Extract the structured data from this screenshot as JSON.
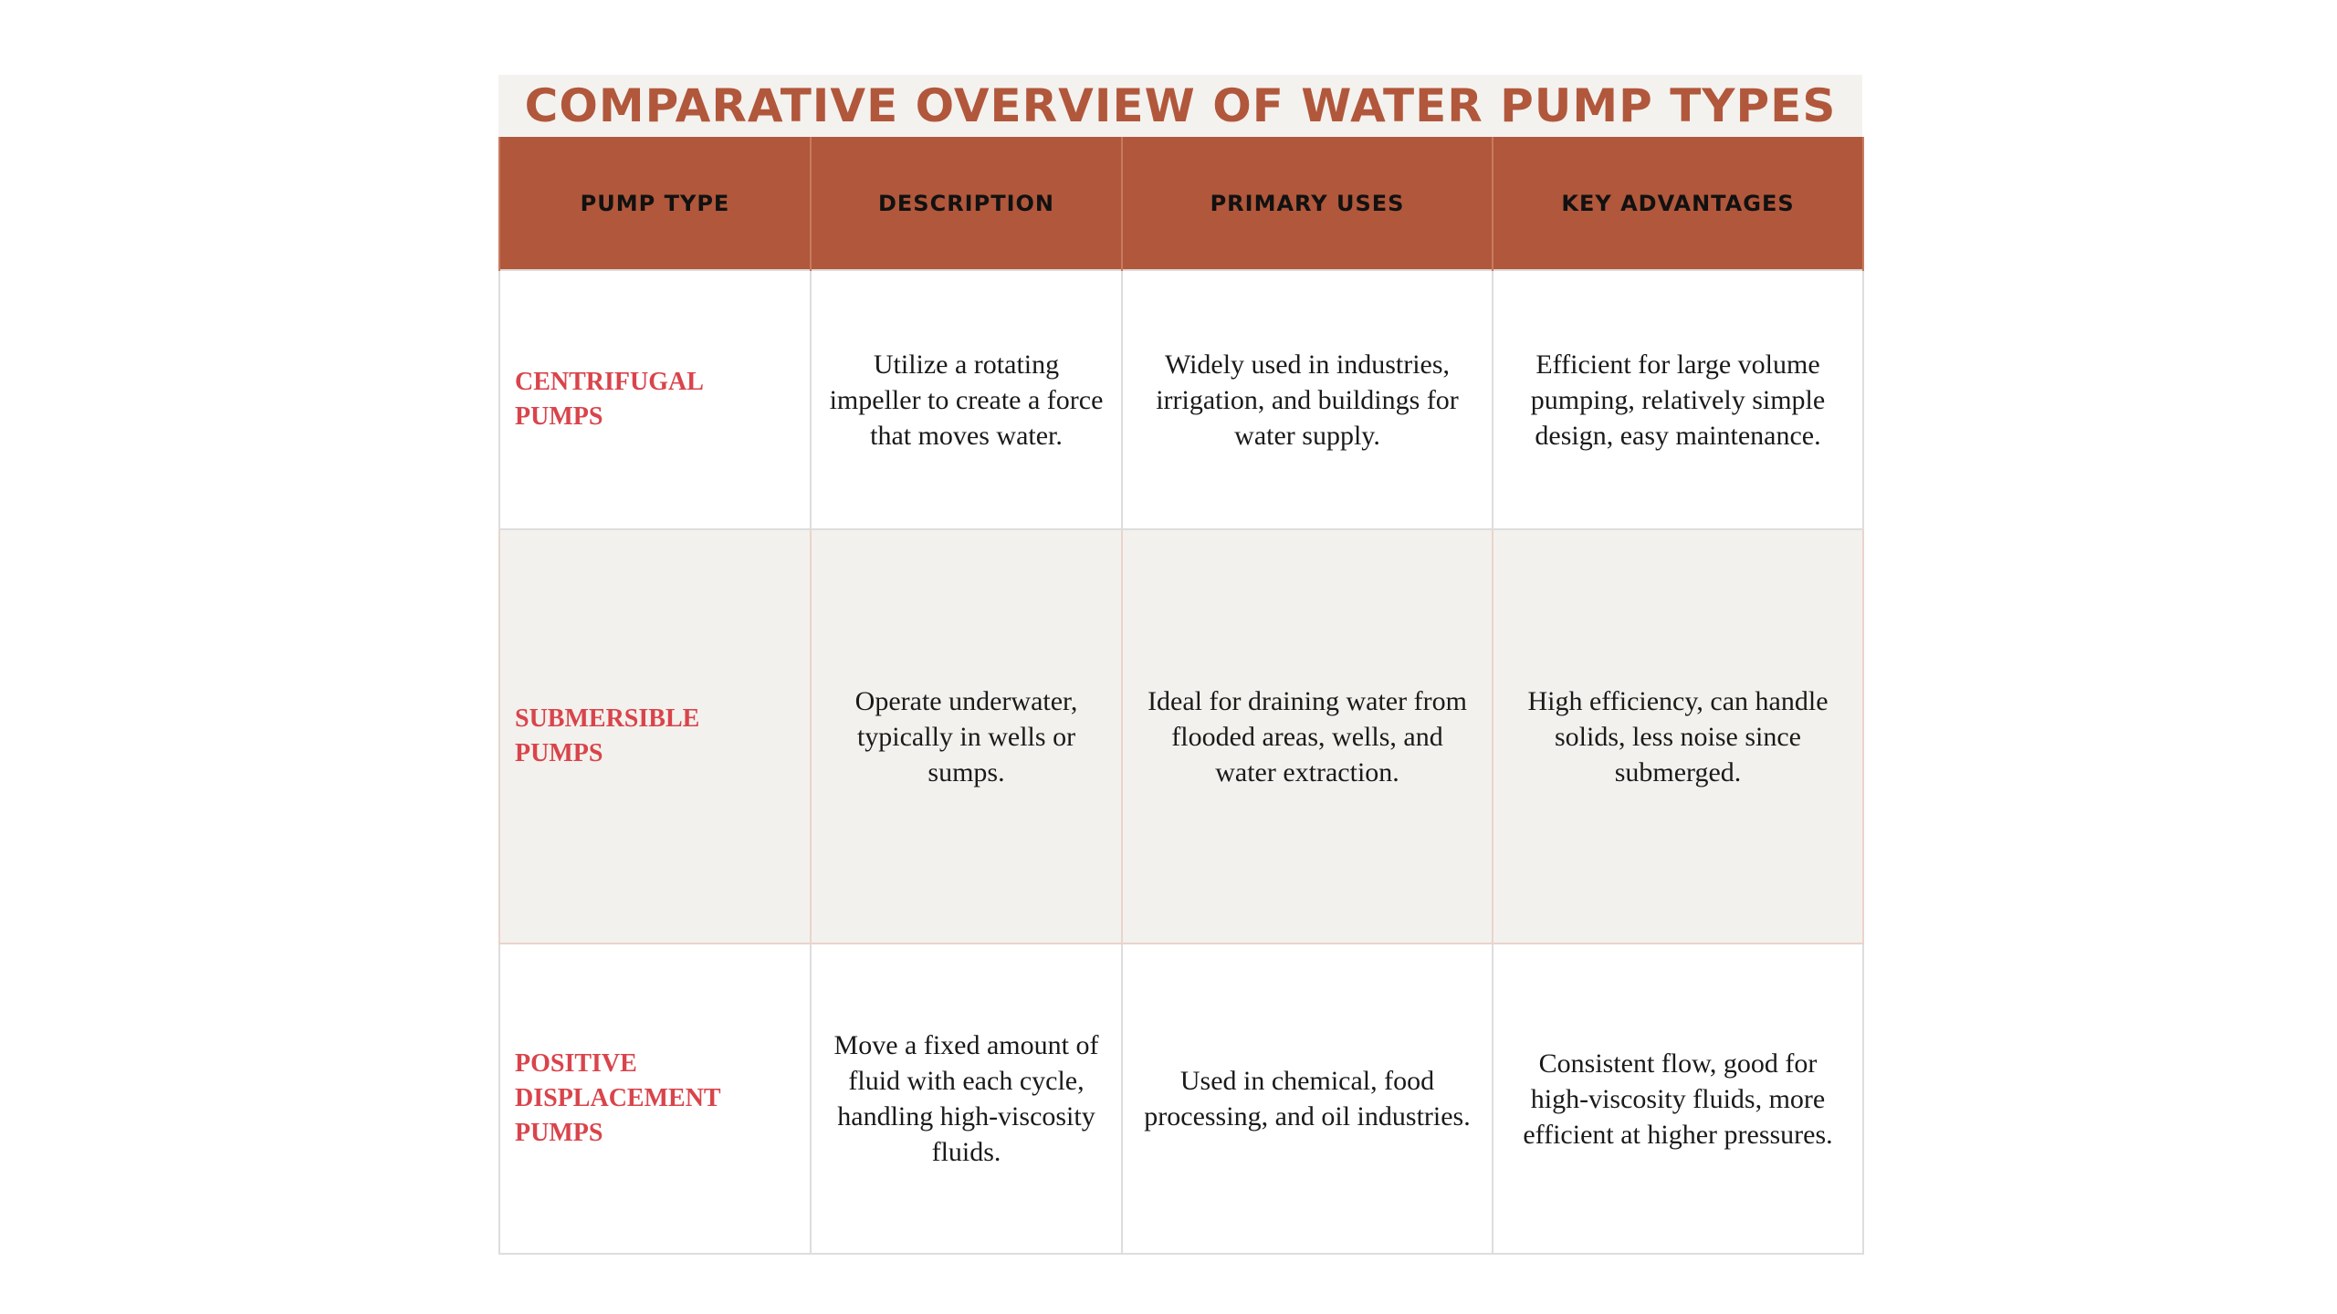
{
  "title": "COMPARATIVE OVERVIEW OF WATER PUMP TYPES",
  "colors": {
    "accent": "#b1573b",
    "pump_type_text": "#d9444b",
    "alt_row_bg": "#f3f1ed"
  },
  "table": {
    "headers": [
      "PUMP TYPE",
      "DESCRIPTION",
      "PRIMARY USES",
      "KEY ADVANTAGES"
    ],
    "rows": [
      {
        "type": "CENTRIFUGAL PUMPS",
        "description": "Utilize a rotating impeller to create a force that moves water.",
        "uses": "Widely used in industries, irrigation, and buildings for water supply.",
        "advantages": "Efficient for large volume pumping, relatively simple design, easy maintenance."
      },
      {
        "type": "SUBMERSIBLE PUMPS",
        "description": "Operate underwater, typically in wells or sumps.",
        "uses": "Ideal for draining water from flooded areas, wells, and water extraction.",
        "advantages": "High efficiency, can handle solids, less noise since submerged."
      },
      {
        "type": "POSITIVE DISPLACEMENT PUMPS",
        "description": "Move a fixed amount of fluid with each cycle, handling high-viscosity fluids.",
        "uses": "Used in chemical, food processing, and oil industries.",
        "advantages": "Consistent flow, good for high-viscosity fluids, more efficient at higher pressures."
      }
    ]
  }
}
